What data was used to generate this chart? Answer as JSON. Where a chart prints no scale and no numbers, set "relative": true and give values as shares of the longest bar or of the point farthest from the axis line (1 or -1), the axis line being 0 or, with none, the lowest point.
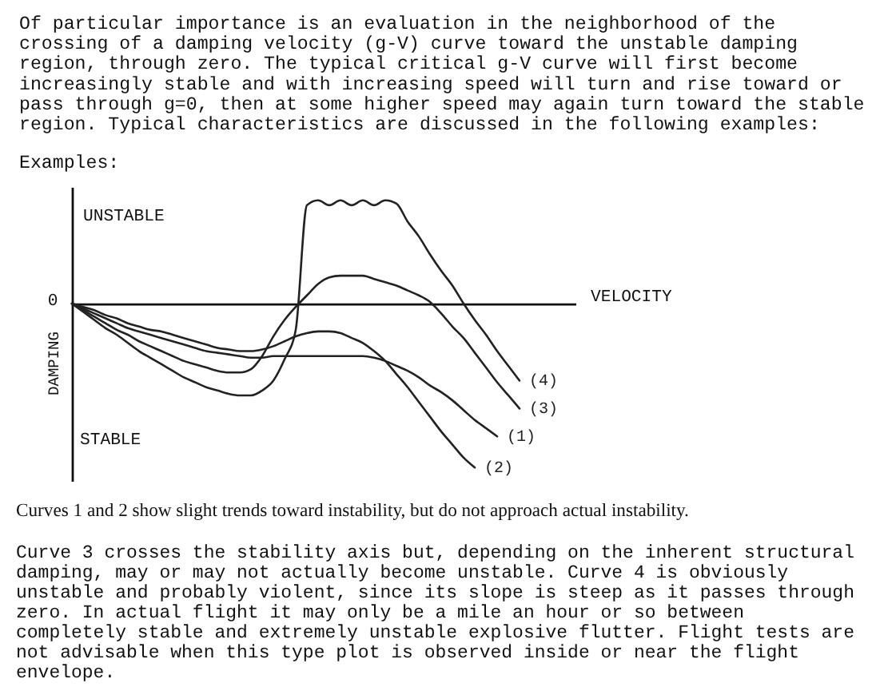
{
  "chart_data": {
    "type": "line",
    "relative": true,
    "xlabel": "VELOCITY",
    "ylabel": "DAMPING",
    "categories": [
      null,
      null,
      null,
      null,
      null,
      null,
      null,
      null,
      null,
      null,
      null,
      null,
      null,
      null,
      null,
      null,
      null,
      null,
      null,
      null,
      null,
      null,
      null,
      null,
      null,
      null,
      null,
      null,
      null,
      null,
      null,
      null,
      null,
      null,
      null,
      null,
      null,
      null,
      null,
      null,
      null,
      null,
      null,
      null,
      null,
      null
    ],
    "series": [
      {
        "name": "(1)",
        "color": "#222222",
        "values": [
          0,
          -0.03,
          -0.06,
          -0.09,
          -0.12,
          -0.15,
          -0.17,
          -0.19,
          -0.21,
          -0.23,
          -0.25,
          -0.27,
          -0.29,
          -0.3,
          -0.31,
          -0.32,
          -0.33,
          -0.33,
          -0.32,
          -0.32,
          -0.32,
          -0.32,
          -0.32,
          -0.32,
          -0.32,
          -0.32,
          -0.32,
          -0.33,
          -0.35,
          -0.38,
          -0.41,
          -0.45,
          -0.5,
          -0.54,
          -0.59,
          -0.65,
          -0.71,
          -0.76,
          -0.81,
          null,
          null,
          null,
          null,
          null,
          null,
          null
        ]
      },
      {
        "name": "(2)",
        "color": "#222222",
        "values": [
          0,
          -0.02,
          -0.04,
          -0.07,
          -0.09,
          -0.12,
          -0.14,
          -0.16,
          -0.17,
          -0.19,
          -0.21,
          -0.23,
          -0.25,
          -0.27,
          -0.28,
          -0.29,
          -0.29,
          -0.28,
          -0.26,
          -0.23,
          -0.2,
          -0.18,
          -0.17,
          -0.17,
          -0.18,
          -0.21,
          -0.24,
          -0.29,
          -0.35,
          -0.43,
          -0.51,
          -0.6,
          -0.69,
          -0.78,
          -0.86,
          -0.94,
          -1,
          null,
          null,
          null,
          null,
          null,
          null,
          null,
          null,
          null
        ]
      },
      {
        "name": "(3)",
        "color": "#222222",
        "values": [
          0,
          -0.04,
          -0.08,
          -0.12,
          -0.16,
          -0.19,
          -0.23,
          -0.26,
          -0.29,
          -0.32,
          -0.35,
          -0.37,
          -0.39,
          -0.41,
          -0.42,
          -0.42,
          -0.4,
          -0.32,
          -0.2,
          -0.1,
          -0.02,
          0.05,
          0.12,
          0.16,
          0.17,
          0.17,
          0.17,
          0.15,
          0.13,
          0.11,
          0.08,
          0.05,
          0.01,
          -0.06,
          -0.14,
          -0.21,
          -0.3,
          -0.39,
          -0.48,
          -0.56,
          -0.64,
          null,
          null,
          null,
          null,
          null
        ]
      },
      {
        "name": "(4)",
        "color": "#222222",
        "values": [
          0,
          -0.05,
          -0.1,
          -0.15,
          -0.19,
          -0.24,
          -0.29,
          -0.33,
          -0.37,
          -0.41,
          -0.45,
          -0.48,
          -0.51,
          -0.53,
          -0.55,
          -0.56,
          -0.56,
          -0.53,
          -0.47,
          -0.34,
          -0.16,
          0.6,
          0.63,
          0.6,
          0.63,
          0.6,
          0.63,
          0.6,
          0.63,
          0.61,
          0.5,
          0.41,
          0.3,
          0.2,
          0.11,
          0,
          -0.1,
          -0.19,
          -0.29,
          -0.38,
          -0.47,
          null,
          null,
          null,
          null,
          null
        ]
      }
    ],
    "annotations": [
      "Of particular importance is an evaluation in the neighborhood of the\ncrossing of a damping velocity (g-V) curve toward the unstable damping\nregion, through zero. The typical critical g-V curve will first become\nincreasingly stable and with increasing speed will turn and rise toward or\npass through g=0, then at some higher speed may again turn toward the stable\nregion. Typical characteristics are discussed in the following examples:",
      "Examples:",
      "UNSTABLE",
      "STABLE",
      "0",
      "Curves 1 and 2 show slight trends toward instability, but do not approach actual instability.",
      "Curve 3 crosses the stability axis but, depending on the inherent structural\ndamping, may or may not actually become unstable. Curve 4 is obviously\nunstable and probably violent, since its slope is steep as it passes through\nzero. In actual flight it may only be a mile an hour or so between\ncompletely stable and extremely unstable explosive flutter. Flight tests are\nnot advisable when this type plot is observed inside or near the flight\nenvelope."
    ]
  }
}
